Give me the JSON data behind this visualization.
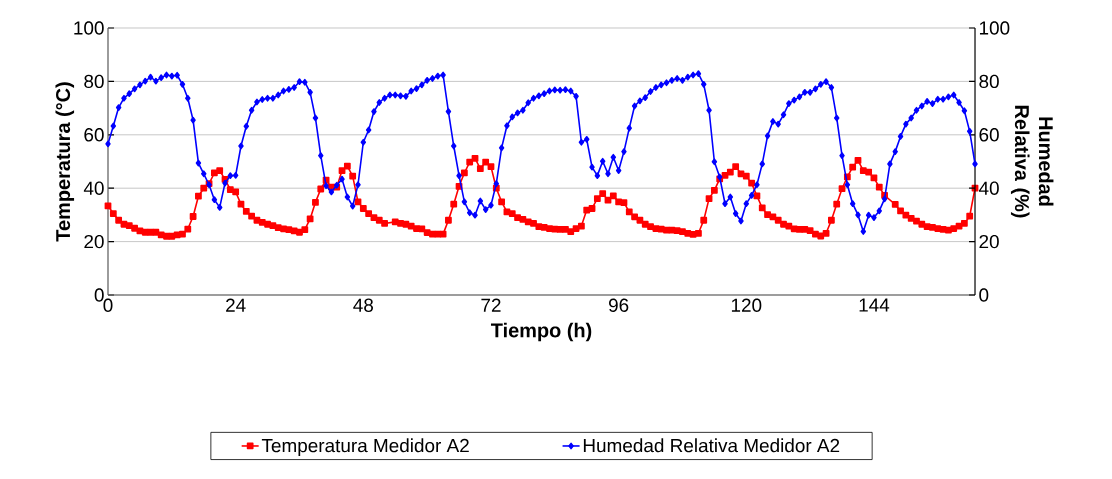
{
  "chart_data": {
    "type": "line",
    "xlabel": "Tiempo (h)",
    "ylabel": "Temperatura (°C)",
    "y2label": "Humedad Relativa (%)",
    "xlim": [
      0,
      163
    ],
    "xticks": [
      0,
      24,
      48,
      72,
      96,
      120,
      144
    ],
    "ylim": [
      0,
      100
    ],
    "yticks": [
      0,
      20,
      40,
      60,
      80,
      100
    ],
    "y2lim": [
      0,
      100
    ],
    "y2ticks": [
      0,
      20,
      40,
      60,
      80,
      100
    ],
    "grid": "y",
    "legend": "bottom",
    "series": [
      {
        "name": "Temperatura Medidor A2",
        "color": "#ff0000",
        "marker": "square",
        "x": [
          0,
          1,
          2,
          3,
          4,
          5,
          6,
          7,
          8,
          9,
          10,
          11,
          12,
          13,
          14,
          15,
          16,
          17,
          18,
          19,
          20,
          21,
          22,
          23,
          24,
          25,
          26,
          27,
          28,
          29,
          30,
          31,
          32,
          33,
          34,
          35,
          36,
          37,
          38,
          39,
          40,
          41,
          42,
          43,
          44,
          45,
          46,
          47,
          48,
          49,
          50,
          51,
          52,
          54,
          55,
          56,
          57,
          58,
          59,
          60,
          61,
          62,
          63,
          64,
          65,
          66,
          67,
          68,
          69,
          70,
          71,
          72,
          73,
          74,
          75,
          76,
          77,
          78,
          79,
          80,
          81,
          82,
          83,
          84,
          85,
          86,
          87,
          88,
          89,
          90,
          91,
          92,
          93,
          94,
          95,
          96,
          97,
          98,
          99,
          100,
          101,
          102,
          103,
          104,
          105,
          106,
          107,
          108,
          109,
          110,
          111,
          112,
          113,
          114,
          115,
          116,
          117,
          118,
          119,
          120,
          121,
          122,
          123,
          124,
          125,
          126,
          127,
          128,
          129,
          130,
          131,
          132,
          133,
          134,
          135,
          136,
          137,
          138,
          139,
          140,
          141,
          142,
          143,
          144,
          145,
          146,
          148,
          149,
          150,
          151,
          152,
          153,
          154,
          155,
          156,
          157,
          158,
          159,
          160,
          161,
          162,
          163
        ],
        "values": [
          33.4,
          30.5,
          28,
          26.5,
          26,
          25,
          24,
          23.5,
          23.5,
          23.5,
          22.5,
          22,
          22,
          22.5,
          22.8,
          24.7,
          29.4,
          37,
          40,
          41.7,
          45.7,
          46.6,
          43.3,
          39.5,
          38.6,
          34,
          31.3,
          29.5,
          28,
          27.2,
          26.5,
          26,
          25.2,
          24.8,
          24.5,
          24,
          23.5,
          24.5,
          28.5,
          34.7,
          39.7,
          43,
          40.4,
          40.4,
          46.6,
          48.3,
          44.5,
          34.9,
          32.4,
          30.5,
          29,
          28,
          26.8,
          27.4,
          26.8,
          26.5,
          25.8,
          24.9,
          24.8,
          23.4,
          22.8,
          22.8,
          22.8,
          28,
          34,
          40.7,
          45.7,
          49.8,
          51.2,
          47.3,
          49.8,
          48.1,
          40,
          34.9,
          31.1,
          30.5,
          29,
          28.3,
          27.4,
          26.8,
          25.6,
          25.3,
          24.9,
          24.7,
          24.6,
          24.6,
          23.7,
          24.9,
          25.8,
          31.8,
          32.4,
          36.1,
          38,
          35.5,
          37.1,
          34.9,
          34.6,
          31.1,
          29.3,
          28,
          26.5,
          25.6,
          24.9,
          24.7,
          24.3,
          24.3,
          24.1,
          23.7,
          23.1,
          22.7,
          23.1,
          28,
          36.1,
          39.2,
          43.5,
          44.8,
          46,
          48.1,
          45.4,
          44.5,
          41.9,
          37.1,
          32.6,
          30.1,
          29.3,
          28,
          26.5,
          25.8,
          24.8,
          24.6,
          24.6,
          24.1,
          22.8,
          22.1,
          23.1,
          28,
          34,
          39.8,
          44.2,
          47.9,
          50.4,
          46.6,
          46,
          43.9,
          40.4,
          37.3,
          33.9,
          31.5,
          29.9,
          28.7,
          27.7,
          26.5,
          25.6,
          25.3,
          24.9,
          24.6,
          24.3,
          24.9,
          25.8,
          26.8,
          29.5,
          40
        ]
      },
      {
        "name": "Humedad Relativa Medidor A2",
        "color": "#0000ff",
        "marker": "diamond",
        "axis": "y2",
        "x": [
          0,
          1,
          2,
          3,
          4,
          5,
          6,
          7,
          8,
          9,
          10,
          11,
          12,
          13,
          14,
          15,
          16,
          17,
          18,
          19,
          20,
          21,
          22,
          23,
          24,
          25,
          26,
          27,
          28,
          29,
          30,
          31,
          32,
          33,
          34,
          35,
          36,
          37,
          38,
          39,
          40,
          41,
          42,
          43,
          44,
          45,
          46,
          47,
          48,
          49,
          50,
          51,
          52,
          53,
          54,
          55,
          56,
          57,
          58,
          59,
          60,
          61,
          62,
          63,
          64,
          65,
          66,
          67,
          68,
          69,
          70,
          71,
          72,
          73,
          74,
          75,
          76,
          77,
          78,
          79,
          80,
          81,
          82,
          83,
          84,
          85,
          86,
          87,
          88,
          89,
          90,
          91,
          92,
          93,
          94,
          95,
          96,
          97,
          98,
          99,
          100,
          101,
          102,
          103,
          104,
          105,
          106,
          107,
          108,
          109,
          110,
          111,
          112,
          113,
          114,
          115,
          116,
          117,
          118,
          119,
          120,
          121,
          122,
          123,
          124,
          125,
          126,
          127,
          128,
          129,
          130,
          131,
          132,
          133,
          134,
          135,
          136,
          137,
          138,
          139,
          140,
          141,
          142,
          143,
          144,
          145,
          146,
          147,
          148,
          149,
          150,
          151,
          152,
          153,
          154,
          155,
          156,
          157,
          158,
          159,
          160,
          161,
          162,
          163
        ],
        "values": [
          56.6,
          63.3,
          70.2,
          73.7,
          75.4,
          77.2,
          78.7,
          80.1,
          81.6,
          80.1,
          81.4,
          82.4,
          82,
          82.3,
          78.9,
          73.7,
          65.5,
          49.4,
          45.4,
          41.3,
          35.7,
          32.8,
          41.9,
          44.7,
          44.8,
          55.8,
          63.2,
          69.2,
          72.3,
          73.2,
          73.7,
          73.7,
          74.9,
          76.4,
          77,
          77.7,
          79.9,
          79.7,
          75.9,
          66.3,
          52.2,
          40.9,
          38.6,
          41.1,
          43.4,
          36.7,
          33.3,
          41.3,
          57.2,
          61.8,
          68.7,
          72.1,
          73.7,
          74.9,
          74.9,
          74.6,
          74.4,
          76.4,
          77.3,
          78.7,
          80.4,
          81.1,
          82,
          82.4,
          68.7,
          55.8,
          44.7,
          34.9,
          30.8,
          29.9,
          35.2,
          32,
          33.6,
          41.7,
          55.1,
          63.4,
          66.7,
          68.2,
          69.2,
          72,
          73.7,
          74.6,
          75.4,
          76.4,
          76.8,
          76.7,
          76.9,
          76.4,
          74.4,
          57.2,
          58.3,
          47.9,
          44.7,
          50.1,
          45.4,
          51.6,
          46.6,
          53.7,
          62.5,
          70.8,
          72.7,
          73.9,
          76.2,
          77.7,
          78.7,
          79.5,
          80.4,
          81.1,
          80.4,
          81.6,
          82.4,
          82.9,
          78.9,
          69.2,
          49.9,
          44.2,
          34.2,
          36.7,
          30.5,
          27.7,
          34.2,
          37.3,
          41.3,
          49.1,
          59.6,
          65,
          64,
          67.5,
          71.7,
          73,
          74.2,
          75.9,
          75.9,
          77.2,
          78.9,
          79.9,
          77.7,
          66.3,
          52.2,
          41.3,
          34.2,
          30,
          23.8,
          29.9,
          29,
          31.5,
          36,
          49.1,
          53.7,
          59.4,
          64,
          66.3,
          69.2,
          70.8,
          72.5,
          71.7,
          73.3,
          73.3,
          74.2,
          74.9,
          72.1,
          69,
          61.3,
          49.1
        ]
      }
    ]
  }
}
